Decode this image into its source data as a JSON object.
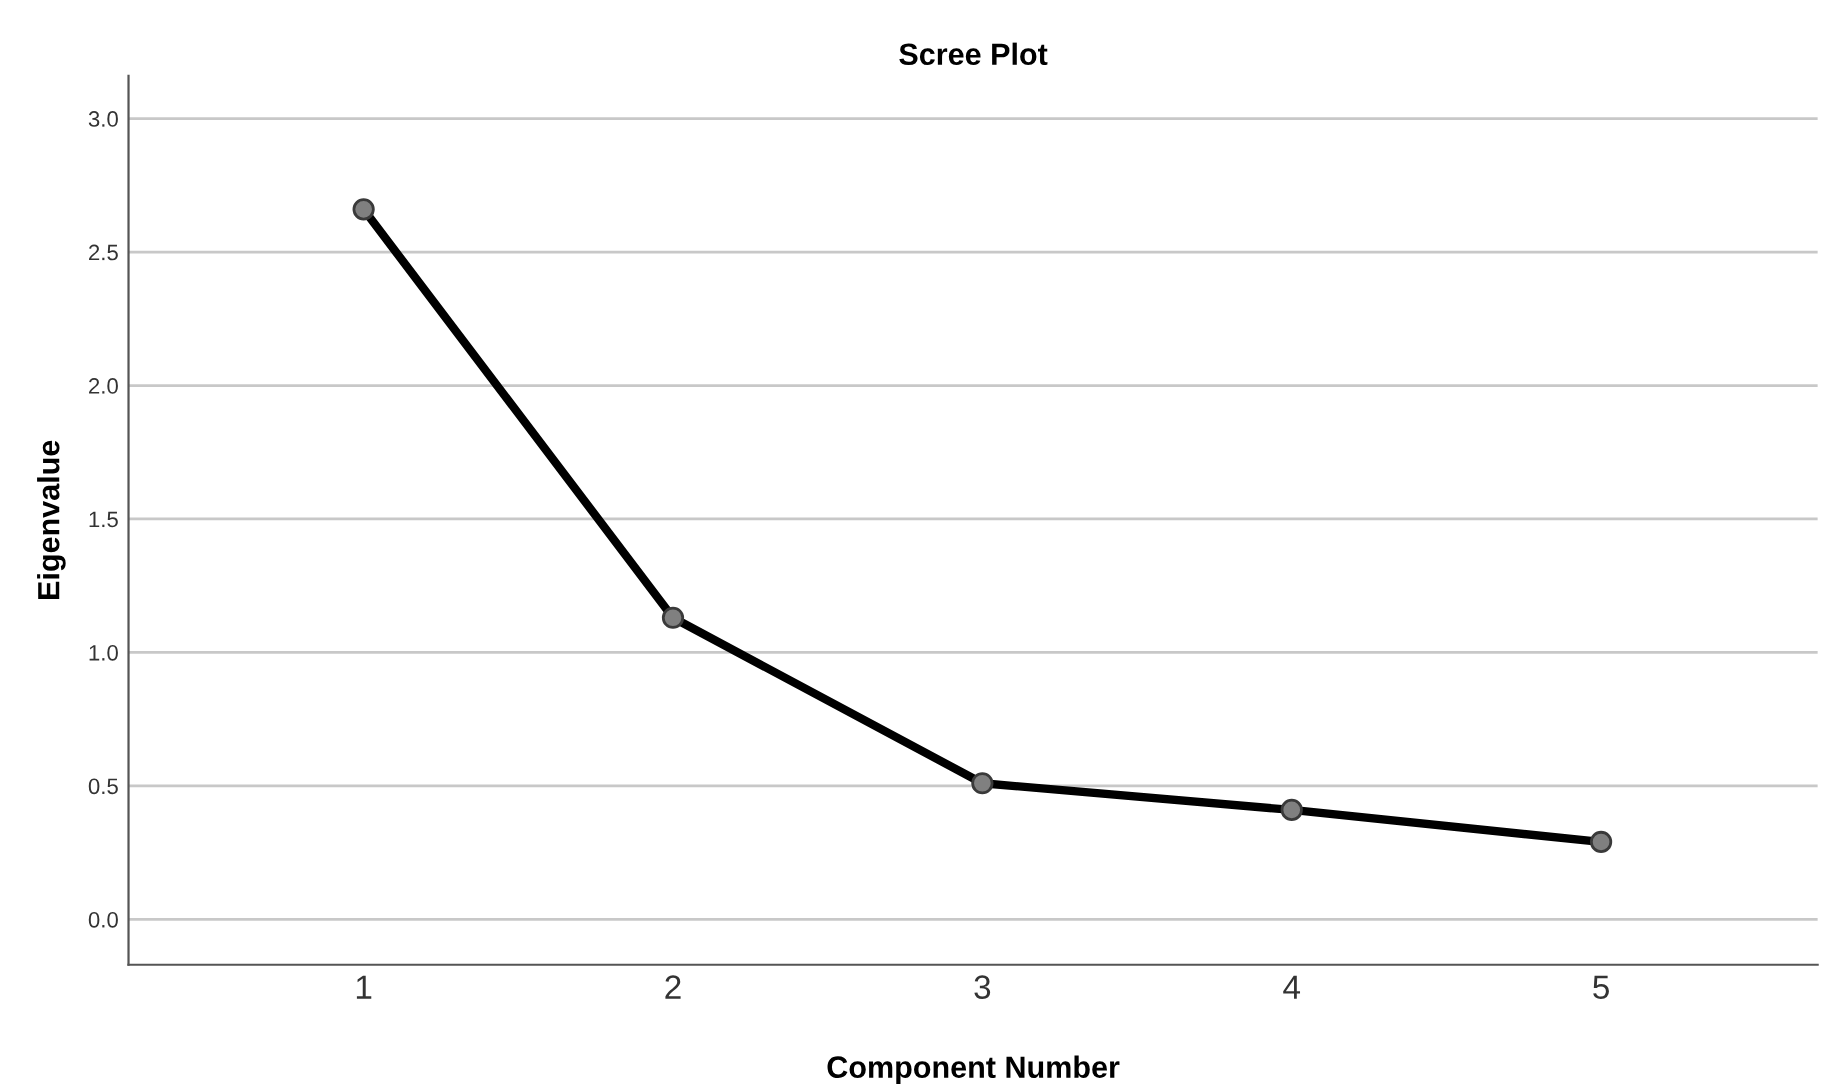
{
  "chart_data": {
    "type": "line",
    "title": "Scree Plot",
    "xlabel": "Component Number",
    "ylabel": "Eigenvalue",
    "categories": [
      "1",
      "2",
      "3",
      "4",
      "5"
    ],
    "series": [
      {
        "color": "#000000",
        "values": [
          2.66,
          1.13,
          0.51,
          0.41,
          0.29
        ]
      }
    ],
    "ylim": [
      -0.17,
      3.16
    ],
    "yticks": [
      {
        "value": 0,
        "label": "0.0"
      },
      {
        "value": 0.5,
        "label": "0.5"
      },
      {
        "value": 1,
        "label": "1.0"
      },
      {
        "value": 1.5,
        "label": "1.5"
      },
      {
        "value": 2,
        "label": "2.0"
      },
      {
        "value": 2.5,
        "label": "2.5"
      },
      {
        "value": 3,
        "label": "3.0"
      }
    ],
    "grid": "y",
    "marker": "circle",
    "line_style": "solid"
  }
}
